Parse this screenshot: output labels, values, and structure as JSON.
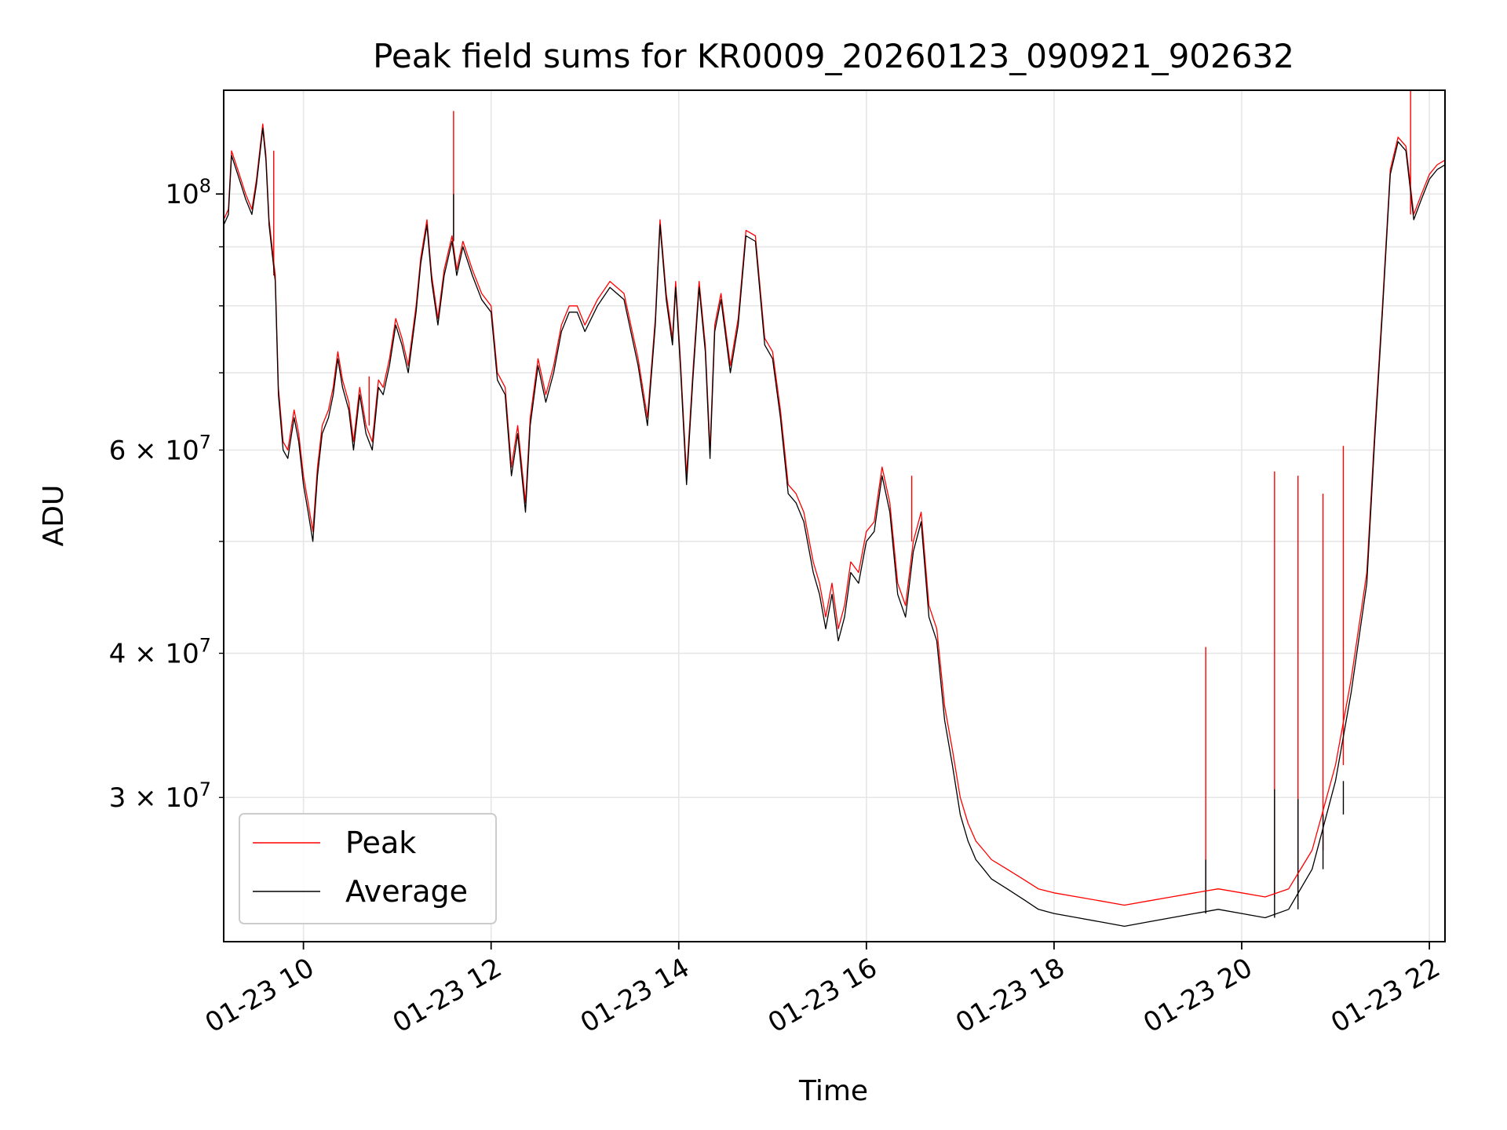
{
  "chart_data": {
    "type": "line",
    "title": "Peak field sums for KR0009_20260123_090921_902632",
    "xlabel": "Time",
    "ylabel": "ADU",
    "y_scale": "log",
    "ylim": [
      22500000,
      123000000
    ],
    "xlim": [
      "01-23 09:09",
      "01-23 22:10"
    ],
    "x_ticks": [
      {
        "label": "01-23 10",
        "value": "01-23 10:00"
      },
      {
        "label": "01-23 12",
        "value": "01-23 12:00"
      },
      {
        "label": "01-23 14",
        "value": "01-23 14:00"
      },
      {
        "label": "01-23 16",
        "value": "01-23 16:00"
      },
      {
        "label": "01-23 18",
        "value": "01-23 18:00"
      },
      {
        "label": "01-23 20",
        "value": "01-23 20:00"
      },
      {
        "label": "01-23 22",
        "value": "01-23 22:00"
      }
    ],
    "y_major_ticks": [
      {
        "value": 100000000,
        "mantissa": "",
        "exponent": "8"
      }
    ],
    "y_minor_ticks": [
      {
        "value": 30000000,
        "mantissa": "3",
        "exponent": "7"
      },
      {
        "value": 40000000,
        "mantissa": "4",
        "exponent": "7"
      },
      {
        "value": 60000000,
        "mantissa": "6",
        "exponent": "7"
      }
    ],
    "y_minor_unlabeled": [
      50000000,
      70000000,
      80000000,
      90000000
    ],
    "grid": true,
    "legend_position": "lower-left",
    "series": [
      {
        "name": "Peak",
        "color": "#ff0000",
        "line_width": 1.3,
        "x": [
          "01-23 09:09",
          "01-23 09:12",
          "01-23 09:14",
          "01-23 09:17",
          "01-23 09:20",
          "01-23 09:23",
          "01-23 09:27",
          "01-23 09:30",
          "01-23 09:34",
          "01-23 09:36",
          "01-23 09:38",
          "01-23 09:42",
          "01-23 09:44",
          "01-23 09:47",
          "01-23 09:50",
          "01-23 09:54",
          "01-23 09:57",
          "01-23 10:00",
          "01-23 10:03",
          "01-23 10:06",
          "01-23 10:09",
          "01-23 10:12",
          "01-23 10:16",
          "01-23 10:19",
          "01-23 10:22",
          "01-23 10:25",
          "01-23 10:29",
          "01-23 10:32",
          "01-23 10:36",
          "01-23 10:40",
          "01-23 10:44",
          "01-23 10:48",
          "01-23 10:51",
          "01-23 10:55",
          "01-23 10:59",
          "01-23 11:03",
          "01-23 11:07",
          "01-23 11:12",
          "01-23 11:15",
          "01-23 11:19",
          "01-23 11:22",
          "01-23 11:26",
          "01-23 11:30",
          "01-23 11:35",
          "01-23 11:38",
          "01-23 11:42",
          "01-23 11:48",
          "01-23 11:54",
          "01-23 12:00",
          "01-23 12:04",
          "01-23 12:09",
          "01-23 12:13",
          "01-23 12:17",
          "01-23 12:22",
          "01-23 12:25",
          "01-23 12:30",
          "01-23 12:35",
          "01-23 12:40",
          "01-23 12:45",
          "01-23 12:50",
          "01-23 12:55",
          "01-23 13:00",
          "01-23 13:08",
          "01-23 13:16",
          "01-23 13:25",
          "01-23 13:34",
          "01-23 13:40",
          "01-23 13:45",
          "01-23 13:48",
          "01-23 13:52",
          "01-23 13:56",
          "01-23 13:58",
          "01-23 14:01",
          "01-23 14:05",
          "01-23 14:09",
          "01-23 14:13",
          "01-23 14:17",
          "01-23 14:20",
          "01-23 14:23",
          "01-23 14:27",
          "01-23 14:33",
          "01-23 14:38",
          "01-23 14:43",
          "01-23 14:49",
          "01-23 14:55",
          "01-23 15:00",
          "01-23 15:05",
          "01-23 15:10",
          "01-23 15:15",
          "01-23 15:20",
          "01-23 15:26",
          "01-23 15:30",
          "01-23 15:34",
          "01-23 15:38",
          "01-23 15:42",
          "01-23 15:46",
          "01-23 15:50",
          "01-23 15:55",
          "01-23 16:00",
          "01-23 16:05",
          "01-23 16:10",
          "01-23 16:15",
          "01-23 16:20",
          "01-23 16:25",
          "01-23 16:30",
          "01-23 16:35",
          "01-23 16:40",
          "01-23 16:45",
          "01-23 16:50",
          "01-23 16:55",
          "01-23 17:00",
          "01-23 17:05",
          "01-23 17:10",
          "01-23 17:15",
          "01-23 17:20",
          "01-23 17:30",
          "01-23 17:40",
          "01-23 17:50",
          "01-23 18:00",
          "01-23 18:15",
          "01-23 18:30",
          "01-23 18:45",
          "01-23 19:00",
          "01-23 19:15",
          "01-23 19:30",
          "01-23 19:45",
          "01-23 20:00",
          "01-23 20:15",
          "01-23 20:30",
          "01-23 20:45",
          "01-23 21:00",
          "01-23 21:10",
          "01-23 21:20",
          "01-23 21:25",
          "01-23 21:30",
          "01-23 21:35",
          "01-23 21:40",
          "01-23 21:45",
          "01-23 21:50",
          "01-23 21:55",
          "01-23 22:00",
          "01-23 22:05",
          "01-23 22:10"
        ],
        "values": [
          95000000,
          97000000,
          109000000,
          106000000,
          103000000,
          100000000,
          97000000,
          103000000,
          115000000,
          108000000,
          95000000,
          85000000,
          68000000,
          61000000,
          60000000,
          65000000,
          62000000,
          57000000,
          54000000,
          51000000,
          58000000,
          63000000,
          65000000,
          68000000,
          73000000,
          69000000,
          66000000,
          61000000,
          68000000,
          63000000,
          61000000,
          69000000,
          68000000,
          72000000,
          78000000,
          75000000,
          71000000,
          80000000,
          88000000,
          95000000,
          85000000,
          78000000,
          86000000,
          92000000,
          86000000,
          91000000,
          86000000,
          82000000,
          80000000,
          70000000,
          68000000,
          58000000,
          63000000,
          54000000,
          64000000,
          72000000,
          67000000,
          71000000,
          77000000,
          80000000,
          80000000,
          77000000,
          81000000,
          84000000,
          82000000,
          72000000,
          64000000,
          78000000,
          95000000,
          82000000,
          75000000,
          84000000,
          72000000,
          57000000,
          70000000,
          84000000,
          74000000,
          60000000,
          77000000,
          82000000,
          71000000,
          78000000,
          93000000,
          92000000,
          75000000,
          73000000,
          65000000,
          56000000,
          55000000,
          53000000,
          48000000,
          46000000,
          43000000,
          46000000,
          42000000,
          44000000,
          48000000,
          47000000,
          51000000,
          52000000,
          58000000,
          54000000,
          46000000,
          44000000,
          50000000,
          53000000,
          44000000,
          42000000,
          36000000,
          33000000,
          30000000,
          28500000,
          27500000,
          27000000,
          26500000,
          26000000,
          25500000,
          25000000,
          24800000,
          24600000,
          24400000,
          24200000,
          24400000,
          24600000,
          24800000,
          25000000,
          24800000,
          24600000,
          25000000,
          27000000,
          32000000,
          38000000,
          47000000,
          62000000,
          80000000,
          105000000,
          112000000,
          110000000,
          96000000,
          100000000,
          104000000,
          106000000,
          107000000
        ]
      },
      {
        "name": "Average",
        "color": "#000000",
        "line_width": 1.3,
        "x": [
          "01-23 09:09",
          "01-23 09:12",
          "01-23 09:14",
          "01-23 09:17",
          "01-23 09:20",
          "01-23 09:23",
          "01-23 09:27",
          "01-23 09:30",
          "01-23 09:34",
          "01-23 09:36",
          "01-23 09:38",
          "01-23 09:42",
          "01-23 09:44",
          "01-23 09:47",
          "01-23 09:50",
          "01-23 09:54",
          "01-23 09:57",
          "01-23 10:00",
          "01-23 10:03",
          "01-23 10:06",
          "01-23 10:09",
          "01-23 10:12",
          "01-23 10:16",
          "01-23 10:19",
          "01-23 10:22",
          "01-23 10:25",
          "01-23 10:29",
          "01-23 10:32",
          "01-23 10:36",
          "01-23 10:40",
          "01-23 10:44",
          "01-23 10:48",
          "01-23 10:51",
          "01-23 10:55",
          "01-23 10:59",
          "01-23 11:03",
          "01-23 11:07",
          "01-23 11:12",
          "01-23 11:15",
          "01-23 11:19",
          "01-23 11:22",
          "01-23 11:26",
          "01-23 11:30",
          "01-23 11:35",
          "01-23 11:38",
          "01-23 11:42",
          "01-23 11:48",
          "01-23 11:54",
          "01-23 12:00",
          "01-23 12:04",
          "01-23 12:09",
          "01-23 12:13",
          "01-23 12:17",
          "01-23 12:22",
          "01-23 12:25",
          "01-23 12:30",
          "01-23 12:35",
          "01-23 12:40",
          "01-23 12:45",
          "01-23 12:50",
          "01-23 12:55",
          "01-23 13:00",
          "01-23 13:08",
          "01-23 13:16",
          "01-23 13:25",
          "01-23 13:34",
          "01-23 13:40",
          "01-23 13:45",
          "01-23 13:48",
          "01-23 13:52",
          "01-23 13:56",
          "01-23 13:58",
          "01-23 14:01",
          "01-23 14:05",
          "01-23 14:09",
          "01-23 14:13",
          "01-23 14:17",
          "01-23 14:20",
          "01-23 14:23",
          "01-23 14:27",
          "01-23 14:33",
          "01-23 14:38",
          "01-23 14:43",
          "01-23 14:49",
          "01-23 14:55",
          "01-23 15:00",
          "01-23 15:05",
          "01-23 15:10",
          "01-23 15:15",
          "01-23 15:20",
          "01-23 15:26",
          "01-23 15:30",
          "01-23 15:34",
          "01-23 15:38",
          "01-23 15:42",
          "01-23 15:46",
          "01-23 15:50",
          "01-23 15:55",
          "01-23 16:00",
          "01-23 16:05",
          "01-23 16:10",
          "01-23 16:15",
          "01-23 16:20",
          "01-23 16:25",
          "01-23 16:30",
          "01-23 16:35",
          "01-23 16:40",
          "01-23 16:45",
          "01-23 16:50",
          "01-23 16:55",
          "01-23 17:00",
          "01-23 17:05",
          "01-23 17:10",
          "01-23 17:15",
          "01-23 17:20",
          "01-23 17:30",
          "01-23 17:40",
          "01-23 17:50",
          "01-23 18:00",
          "01-23 18:15",
          "01-23 18:30",
          "01-23 18:45",
          "01-23 19:00",
          "01-23 19:15",
          "01-23 19:30",
          "01-23 19:45",
          "01-23 20:00",
          "01-23 20:15",
          "01-23 20:30",
          "01-23 20:45",
          "01-23 21:00",
          "01-23 21:10",
          "01-23 21:20",
          "01-23 21:25",
          "01-23 21:30",
          "01-23 21:35",
          "01-23 21:40",
          "01-23 21:45",
          "01-23 21:50",
          "01-23 21:55",
          "01-23 22:00",
          "01-23 22:05",
          "01-23 22:10"
        ],
        "values": [
          94000000,
          96000000,
          108000000,
          105000000,
          102000000,
          99000000,
          96000000,
          102000000,
          114000000,
          107000000,
          94000000,
          84000000,
          67000000,
          60000000,
          59000000,
          64000000,
          61000000,
          56000000,
          53000000,
          50000000,
          57000000,
          62000000,
          64000000,
          67000000,
          72000000,
          68000000,
          65000000,
          60000000,
          67000000,
          62000000,
          60000000,
          68000000,
          67000000,
          71000000,
          77000000,
          74000000,
          70000000,
          79000000,
          87000000,
          94000000,
          84000000,
          77000000,
          85000000,
          91000000,
          85000000,
          90000000,
          85000000,
          81000000,
          79000000,
          69000000,
          67000000,
          57000000,
          62000000,
          53000000,
          63000000,
          71000000,
          66000000,
          70000000,
          76000000,
          79000000,
          79000000,
          76000000,
          80000000,
          83000000,
          81000000,
          71000000,
          63000000,
          77000000,
          94000000,
          81000000,
          74000000,
          83000000,
          71000000,
          56000000,
          69000000,
          83000000,
          73000000,
          59000000,
          76000000,
          81000000,
          70000000,
          77000000,
          92000000,
          91000000,
          74000000,
          72000000,
          64000000,
          55000000,
          54000000,
          52000000,
          47000000,
          45000000,
          42000000,
          45000000,
          41000000,
          43000000,
          47000000,
          46000000,
          50000000,
          51000000,
          57000000,
          53000000,
          45000000,
          43000000,
          49000000,
          52000000,
          43000000,
          41000000,
          35000000,
          32000000,
          29000000,
          27500000,
          26500000,
          26000000,
          25500000,
          25000000,
          24500000,
          24000000,
          23800000,
          23600000,
          23400000,
          23200000,
          23400000,
          23600000,
          23800000,
          24000000,
          23800000,
          23600000,
          24000000,
          26000000,
          31000000,
          37000000,
          46000000,
          61000000,
          79000000,
          104000000,
          111000000,
          109000000,
          95000000,
          99000000,
          103000000,
          105000000,
          106000000
        ]
      }
    ],
    "spikes": [
      {
        "series": "Peak",
        "x": "01-23 09:41",
        "value": 109000000
      },
      {
        "series": "Peak",
        "x": "01-23 10:42",
        "value": 69500000
      },
      {
        "series": "Peak",
        "x": "01-23 11:36",
        "value": 118000000
      },
      {
        "series": "Peak",
        "x": "01-23 16:29",
        "value": 57000000
      },
      {
        "series": "Peak",
        "x": "01-23 19:37",
        "value": 40500000
      },
      {
        "series": "Peak",
        "x": "01-23 20:21",
        "value": 57500000
      },
      {
        "series": "Peak",
        "x": "01-23 20:36",
        "value": 57000000
      },
      {
        "series": "Peak",
        "x": "01-23 20:52",
        "value": 55000000
      },
      {
        "series": "Peak",
        "x": "01-23 21:05",
        "value": 60500000
      },
      {
        "series": "Peak",
        "x": "01-23 21:48",
        "value": 123000000
      },
      {
        "series": "Average",
        "x": "01-23 11:36",
        "value": 100000000
      },
      {
        "series": "Average",
        "x": "01-23 19:37",
        "value": 26500000
      },
      {
        "series": "Average",
        "x": "01-23 20:21",
        "value": 30500000
      },
      {
        "series": "Average",
        "x": "01-23 20:36",
        "value": 29900000
      },
      {
        "series": "Average",
        "x": "01-23 20:52",
        "value": 29000000
      },
      {
        "series": "Average",
        "x": "01-23 21:05",
        "value": 29000000
      }
    ]
  }
}
